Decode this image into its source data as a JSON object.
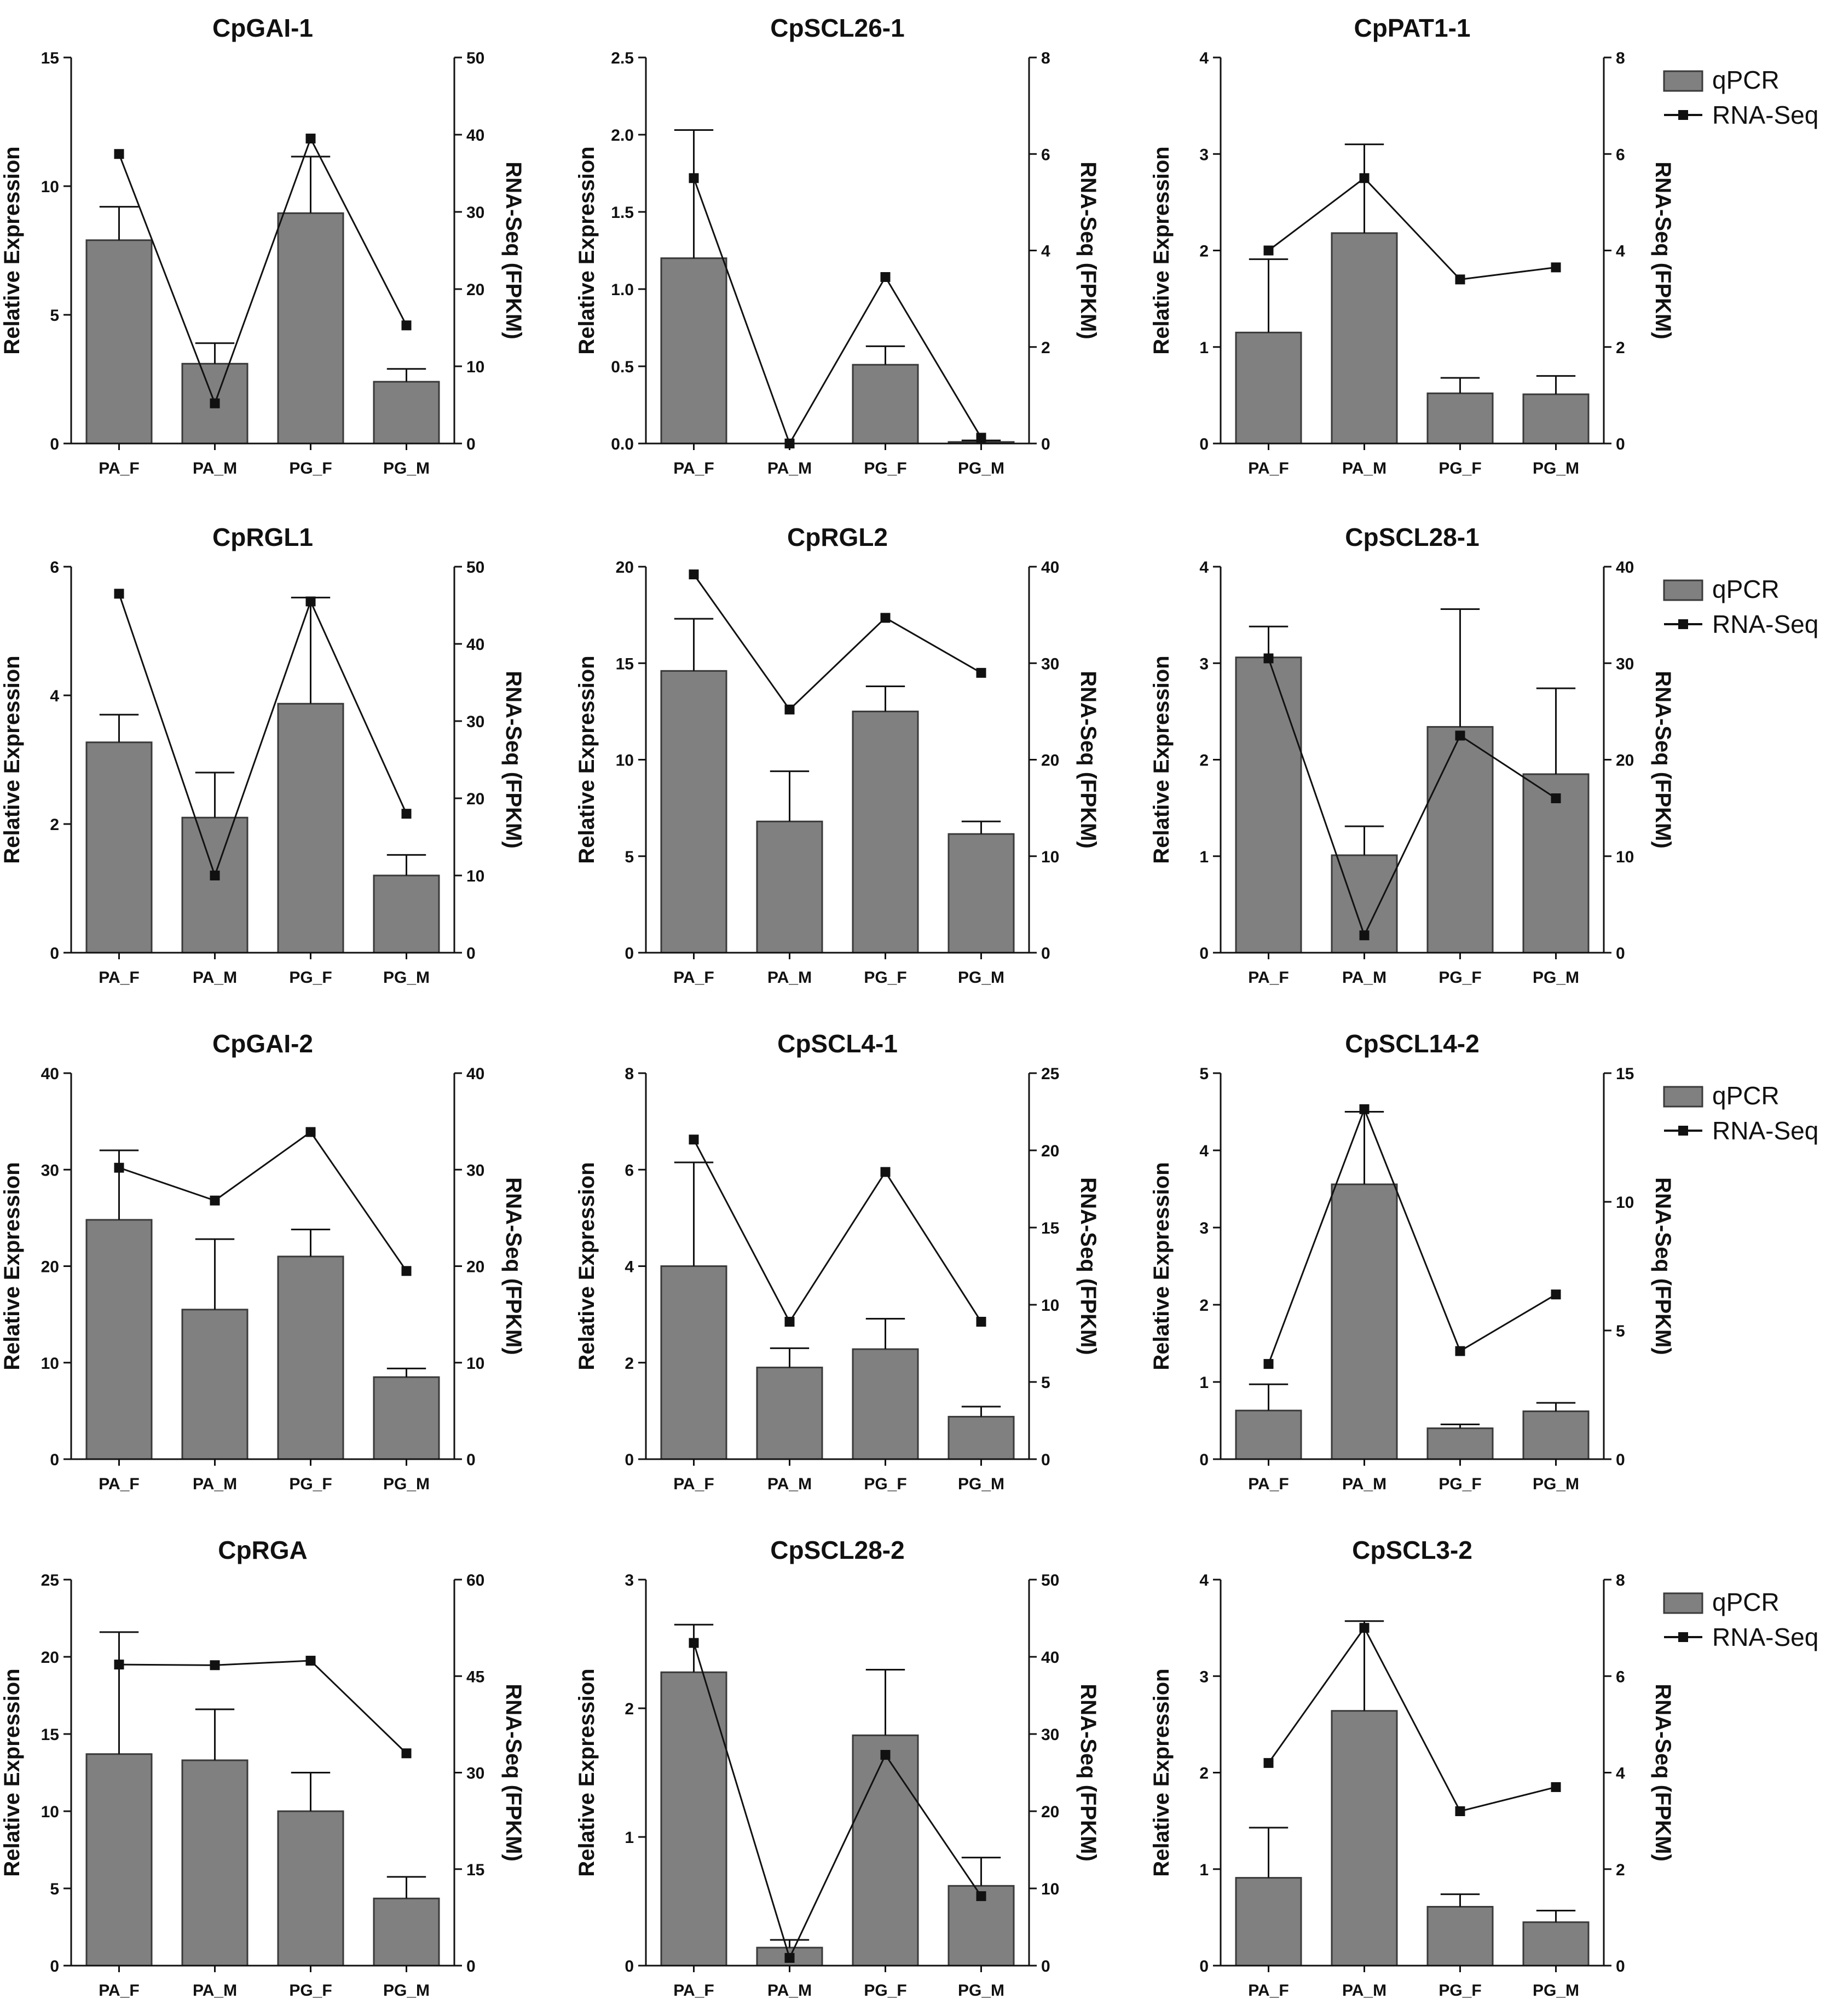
{
  "legend": {
    "bar_label": "qPCR",
    "line_label": "RNA-Seq"
  },
  "colors": {
    "bar_fill": "#808080",
    "bar_stroke": "#3a3a3a",
    "line": "#111111",
    "axis": "#111111"
  },
  "chart_data": [
    {
      "type": "bar",
      "title": "CpGAI-1",
      "categories": [
        "PA_F",
        "PA_M",
        "PG_F",
        "PG_M"
      ],
      "xlabel": "",
      "ylabel": "Relative Expression",
      "y2label": "RNA-Seq (FPKM)",
      "ylim": [
        0,
        15
      ],
      "yticks": [
        0,
        5,
        10,
        15
      ],
      "y2lim": [
        0,
        50
      ],
      "y2ticks": [
        0,
        10,
        20,
        30,
        40,
        50
      ],
      "series": [
        {
          "name": "qPCR",
          "axis": "left",
          "values": [
            7.9,
            3.1,
            8.95,
            2.4
          ],
          "errors": [
            1.3,
            0.8,
            2.2,
            0.5
          ]
        },
        {
          "name": "RNA-Seq",
          "axis": "right",
          "values": [
            37.5,
            5.2,
            39.5,
            15.3
          ]
        }
      ]
    },
    {
      "type": "bar",
      "title": "CpSCL26-1",
      "categories": [
        "PA_F",
        "PA_M",
        "PG_F",
        "PG_M"
      ],
      "xlabel": "",
      "ylabel": "Relative Expression",
      "y2label": "RNA-Seq (FPKM)",
      "ylim": [
        0,
        2.5
      ],
      "yticks": [
        0.0,
        0.5,
        1.0,
        1.5,
        2.0,
        2.5
      ],
      "y2lim": [
        0,
        8
      ],
      "y2ticks": [
        0,
        2,
        4,
        6,
        8
      ],
      "series": [
        {
          "name": "qPCR",
          "axis": "left",
          "values": [
            1.2,
            0.0,
            0.51,
            0.01
          ],
          "errors": [
            0.83,
            0.0,
            0.12,
            0.01
          ]
        },
        {
          "name": "RNA-Seq",
          "axis": "right",
          "values": [
            5.5,
            0.0,
            3.45,
            0.12
          ]
        }
      ]
    },
    {
      "type": "bar",
      "title": "CpPAT1-1",
      "categories": [
        "PA_F",
        "PA_M",
        "PG_F",
        "PG_M"
      ],
      "xlabel": "",
      "ylabel": "Relative Expression",
      "y2label": "RNA-Seq (FPKM)",
      "ylim": [
        0,
        4
      ],
      "yticks": [
        0,
        1,
        2,
        3,
        4
      ],
      "y2lim": [
        0,
        8
      ],
      "y2ticks": [
        0,
        2,
        4,
        6,
        8
      ],
      "series": [
        {
          "name": "qPCR",
          "axis": "left",
          "values": [
            1.15,
            2.18,
            0.52,
            0.51
          ],
          "errors": [
            0.76,
            0.92,
            0.16,
            0.19
          ]
        },
        {
          "name": "RNA-Seq",
          "axis": "right",
          "values": [
            4.0,
            5.5,
            3.4,
            3.65
          ]
        }
      ]
    },
    {
      "type": "bar",
      "title": "CpRGL1",
      "categories": [
        "PA_F",
        "PA_M",
        "PG_F",
        "PG_M"
      ],
      "xlabel": "",
      "ylabel": "Relative Expression",
      "y2label": "RNA-Seq (FPKM)",
      "ylim": [
        0,
        6
      ],
      "yticks": [
        0,
        2,
        4,
        6
      ],
      "y2lim": [
        0,
        50
      ],
      "y2ticks": [
        0,
        10,
        20,
        30,
        40,
        50
      ],
      "series": [
        {
          "name": "qPCR",
          "axis": "left",
          "values": [
            3.27,
            2.1,
            3.87,
            1.2
          ],
          "errors": [
            0.43,
            0.7,
            1.65,
            0.32
          ]
        },
        {
          "name": "RNA-Seq",
          "axis": "right",
          "values": [
            46.5,
            10.0,
            45.5,
            18.0
          ]
        }
      ]
    },
    {
      "type": "bar",
      "title": "CpRGL2",
      "categories": [
        "PA_F",
        "PA_M",
        "PG_F",
        "PG_M"
      ],
      "xlabel": "",
      "ylabel": "Relative Expression",
      "y2label": "RNA-Seq (FPKM)",
      "ylim": [
        0,
        20
      ],
      "yticks": [
        0,
        5,
        10,
        15,
        20
      ],
      "y2lim": [
        0,
        40
      ],
      "y2ticks": [
        0,
        10,
        20,
        30,
        40
      ],
      "series": [
        {
          "name": "qPCR",
          "axis": "left",
          "values": [
            14.6,
            6.8,
            12.5,
            6.15
          ],
          "errors": [
            2.7,
            2.6,
            1.3,
            0.65
          ]
        },
        {
          "name": "RNA-Seq",
          "axis": "right",
          "values": [
            39.2,
            25.2,
            34.7,
            29.0
          ]
        }
      ]
    },
    {
      "type": "bar",
      "title": "CpSCL28-1",
      "categories": [
        "PA_F",
        "PA_M",
        "PG_F",
        "PG_M"
      ],
      "xlabel": "",
      "ylabel": "Relative Expression",
      "y2label": "RNA-Seq (FPKM)",
      "ylim": [
        0,
        4
      ],
      "yticks": [
        0,
        1,
        2,
        3,
        4
      ],
      "y2lim": [
        0,
        40
      ],
      "y2ticks": [
        0,
        10,
        20,
        30,
        40
      ],
      "series": [
        {
          "name": "qPCR",
          "axis": "left",
          "values": [
            3.06,
            1.01,
            2.34,
            1.85
          ],
          "errors": [
            0.32,
            0.3,
            1.22,
            0.89
          ]
        },
        {
          "name": "RNA-Seq",
          "axis": "right",
          "values": [
            30.5,
            1.8,
            22.5,
            16.0
          ]
        }
      ]
    },
    {
      "type": "bar",
      "title": "CpGAI-2",
      "categories": [
        "PA_F",
        "PA_M",
        "PG_F",
        "PG_M"
      ],
      "xlabel": "",
      "ylabel": "Relative Expression",
      "y2label": "RNA-Seq (FPKM)",
      "ylim": [
        0,
        40
      ],
      "yticks": [
        0,
        10,
        20,
        30,
        40
      ],
      "y2lim": [
        0,
        40
      ],
      "y2ticks": [
        0,
        10,
        20,
        30,
        40
      ],
      "series": [
        {
          "name": "qPCR",
          "axis": "left",
          "values": [
            24.8,
            15.5,
            21.0,
            8.5
          ],
          "errors": [
            7.2,
            7.3,
            2.8,
            0.9
          ]
        },
        {
          "name": "RNA-Seq",
          "axis": "right",
          "values": [
            30.2,
            26.8,
            33.9,
            19.5
          ]
        }
      ]
    },
    {
      "type": "bar",
      "title": "CpSCL4-1",
      "categories": [
        "PA_F",
        "PA_M",
        "PG_F",
        "PG_M"
      ],
      "xlabel": "",
      "ylabel": "Relative Expression",
      "y2label": "RNA-Seq (FPKM)",
      "ylim": [
        0,
        8
      ],
      "yticks": [
        0,
        2,
        4,
        6,
        8
      ],
      "y2lim": [
        0,
        25
      ],
      "y2ticks": [
        0,
        5,
        10,
        15,
        20,
        25
      ],
      "series": [
        {
          "name": "qPCR",
          "axis": "left",
          "values": [
            4.0,
            1.9,
            2.28,
            0.88
          ],
          "errors": [
            2.15,
            0.4,
            0.63,
            0.21
          ]
        },
        {
          "name": "RNA-Seq",
          "axis": "right",
          "values": [
            20.7,
            8.9,
            18.6,
            8.9
          ]
        }
      ]
    },
    {
      "type": "bar",
      "title": "CpSCL14-2",
      "categories": [
        "PA_F",
        "PA_M",
        "PG_F",
        "PG_M"
      ],
      "xlabel": "",
      "ylabel": "Relative Expression",
      "y2label": "RNA-Seq (FPKM)",
      "ylim": [
        0,
        5
      ],
      "yticks": [
        0,
        1,
        2,
        3,
        4,
        5
      ],
      "y2lim": [
        0,
        15
      ],
      "y2ticks": [
        0,
        5,
        10,
        15
      ],
      "series": [
        {
          "name": "qPCR",
          "axis": "left",
          "values": [
            0.63,
            3.56,
            0.4,
            0.62
          ],
          "errors": [
            0.34,
            0.94,
            0.05,
            0.11
          ]
        },
        {
          "name": "RNA-Seq",
          "axis": "right",
          "values": [
            3.7,
            13.6,
            4.2,
            6.4
          ]
        }
      ]
    },
    {
      "type": "bar",
      "title": "CpRGA",
      "categories": [
        "PA_F",
        "PA_M",
        "PG_F",
        "PG_M"
      ],
      "xlabel": "",
      "ylabel": "Relative Expression",
      "y2label": "RNA-Seq (FPKM)",
      "ylim": [
        0,
        25
      ],
      "yticks": [
        0,
        5,
        10,
        15,
        20,
        25
      ],
      "y2lim": [
        0,
        60
      ],
      "y2ticks": [
        0,
        15,
        30,
        45,
        60
      ],
      "series": [
        {
          "name": "qPCR",
          "axis": "left",
          "values": [
            13.7,
            13.3,
            10.0,
            4.35
          ],
          "errors": [
            7.9,
            3.3,
            2.5,
            1.4
          ]
        },
        {
          "name": "RNA-Seq",
          "axis": "right",
          "values": [
            46.8,
            46.7,
            47.4,
            33.0
          ]
        }
      ]
    },
    {
      "type": "bar",
      "title": "CpSCL28-2",
      "categories": [
        "PA_F",
        "PA_M",
        "PG_F",
        "PG_M"
      ],
      "xlabel": "",
      "ylabel": "Relative Expression",
      "y2label": "RNA-Seq (FPKM)",
      "ylim": [
        0,
        3
      ],
      "yticks": [
        0,
        1,
        2,
        3
      ],
      "y2lim": [
        0,
        50
      ],
      "y2ticks": [
        0,
        10,
        20,
        30,
        40,
        50
      ],
      "series": [
        {
          "name": "qPCR",
          "axis": "left",
          "values": [
            2.28,
            0.14,
            1.79,
            0.62
          ],
          "errors": [
            0.37,
            0.06,
            0.51,
            0.22
          ]
        },
        {
          "name": "RNA-Seq",
          "axis": "right",
          "values": [
            41.8,
            1.0,
            27.3,
            9.0
          ]
        }
      ]
    },
    {
      "type": "bar",
      "title": "CpSCL3-2",
      "categories": [
        "PA_F",
        "PA_M",
        "PG_F",
        "PG_M"
      ],
      "xlabel": "",
      "ylabel": "Relative Expression",
      "y2label": "RNA-Seq (FPKM)",
      "ylim": [
        0,
        4
      ],
      "yticks": [
        0,
        1,
        2,
        3,
        4
      ],
      "y2lim": [
        0,
        8
      ],
      "y2ticks": [
        0,
        2,
        4,
        6,
        8
      ],
      "series": [
        {
          "name": "qPCR",
          "axis": "left",
          "values": [
            0.91,
            2.64,
            0.61,
            0.45
          ],
          "errors": [
            0.52,
            0.93,
            0.13,
            0.12
          ]
        },
        {
          "name": "RNA-Seq",
          "axis": "right",
          "values": [
            4.2,
            7.0,
            3.2,
            3.7
          ]
        }
      ]
    }
  ]
}
